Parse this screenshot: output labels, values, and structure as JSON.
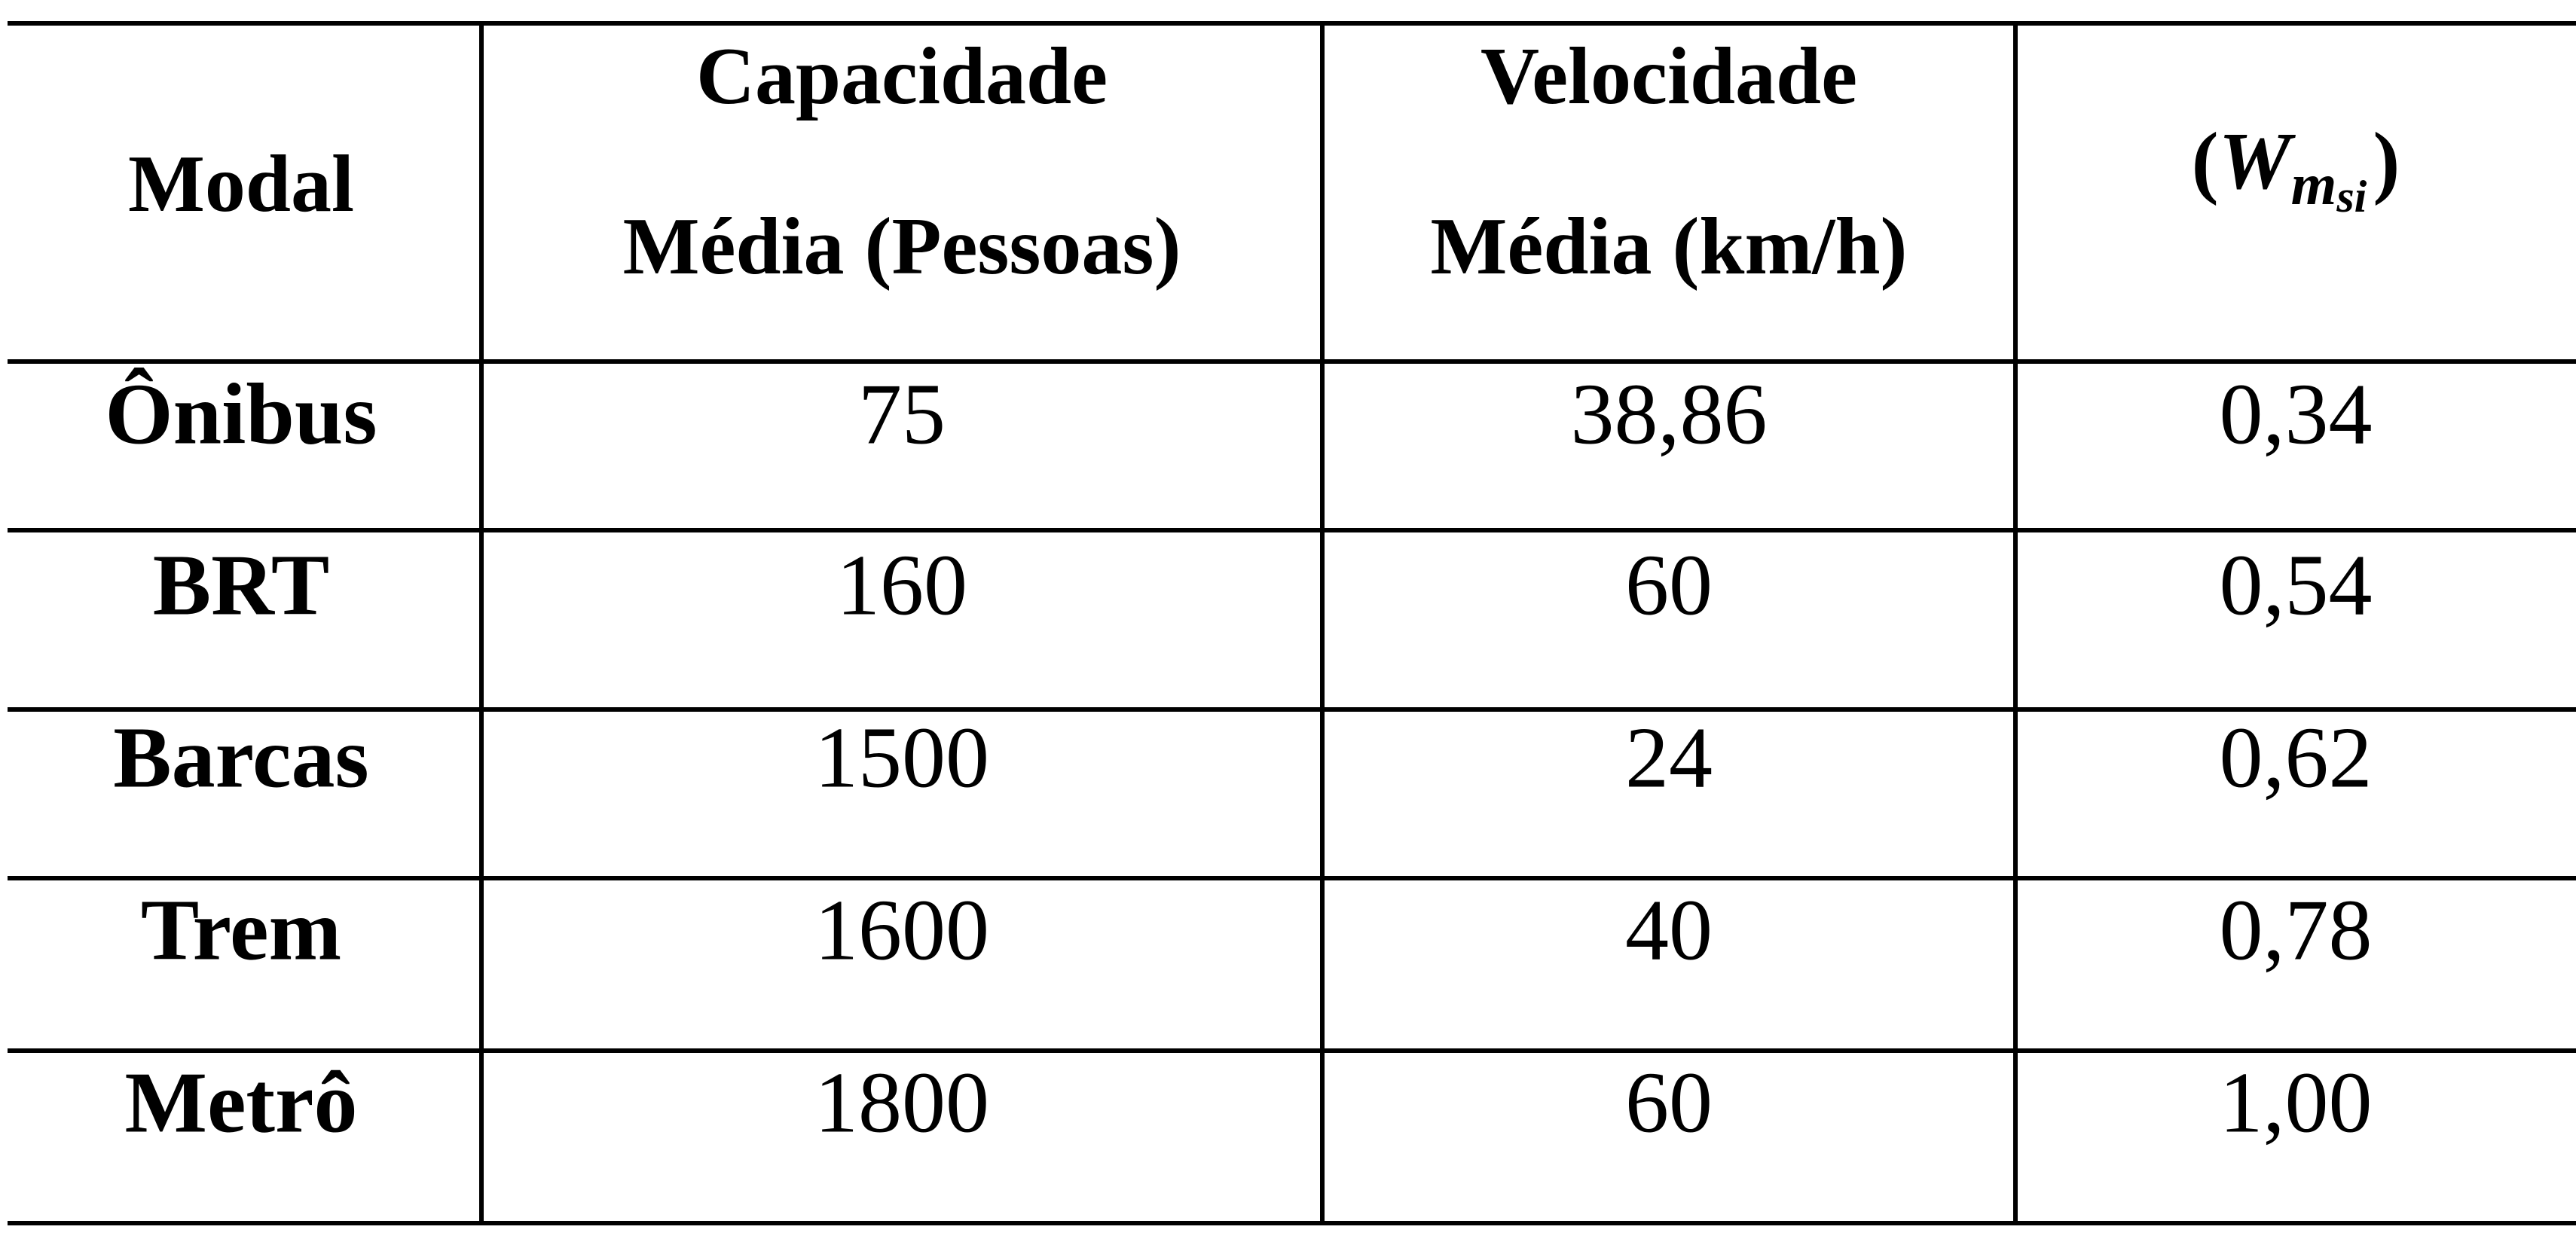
{
  "table": {
    "header": [
      [
        "Modal"
      ],
      [
        "Capacidade",
        "Média (Pessoas)"
      ],
      [
        "Velocidade",
        "Média (km/h)"
      ],
      {
        "open": "(",
        "symbol": "W",
        "subscript": "m",
        "sub_subscript": "si",
        "close": ")"
      }
    ],
    "rows": [
      [
        "Ônibus",
        "75",
        "38,86",
        "0,34"
      ],
      [
        "BRT",
        "160",
        "60",
        "0,54"
      ],
      [
        "Barcas",
        "1500",
        "24",
        "0,62"
      ],
      [
        "Trem",
        "1600",
        "40",
        "0,78"
      ],
      [
        "Metrô",
        "1800",
        "60",
        "1,00"
      ]
    ]
  }
}
